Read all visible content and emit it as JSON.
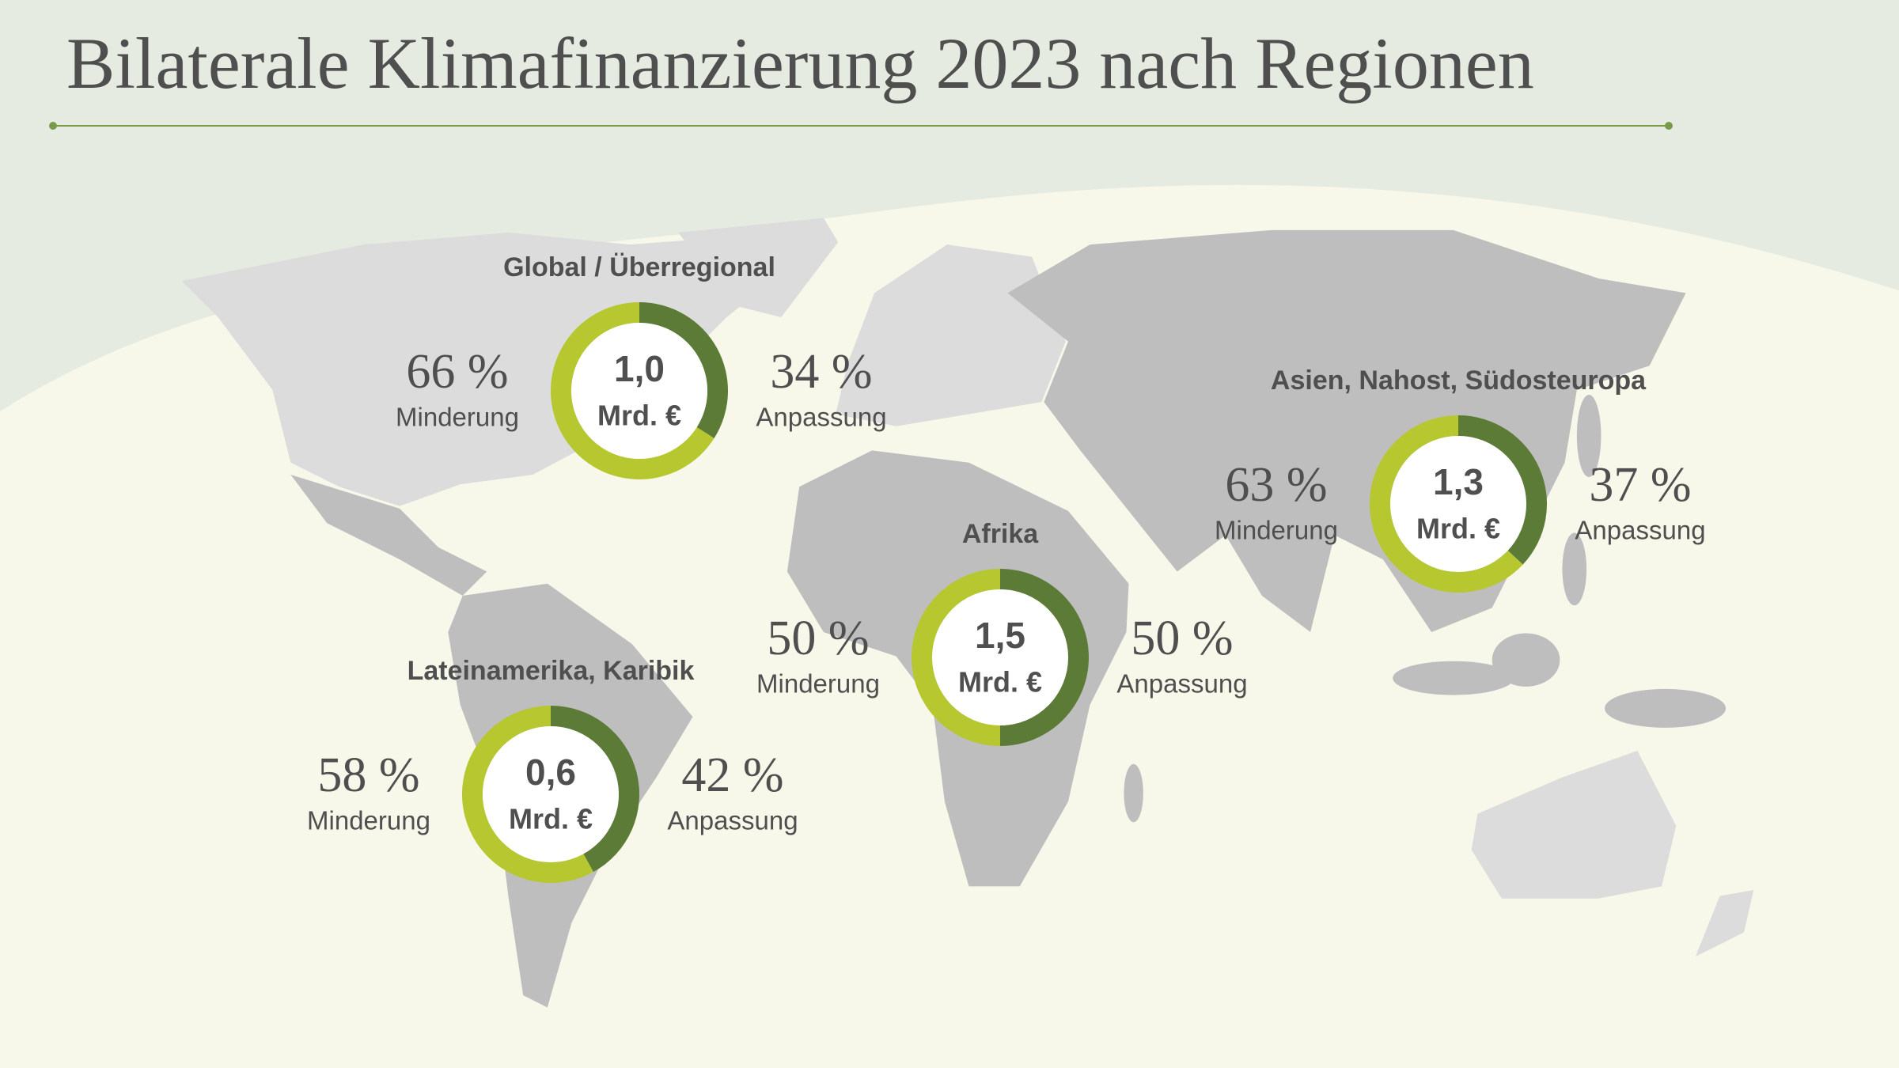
{
  "title": "Bilaterale Klimafinanzierung 2023 nach Regionen",
  "chart_data": [
    {
      "type": "pie",
      "donut": true,
      "title": "Global / Überregional",
      "center_label": "1,0",
      "center_unit": "Mrd. €",
      "categories": [
        "Minderung",
        "Anpassung"
      ],
      "values": [
        66,
        34
      ],
      "value_labels": [
        "66 %",
        "34 %"
      ],
      "colors": [
        "#b6c72f",
        "#5b7b37"
      ]
    },
    {
      "type": "pie",
      "donut": true,
      "title": "Asien, Nahost, Südosteuropa",
      "center_label": "1,3",
      "center_unit": "Mrd. €",
      "categories": [
        "Minderung",
        "Anpassung"
      ],
      "values": [
        63,
        37
      ],
      "value_labels": [
        "63 %",
        "37 %"
      ],
      "colors": [
        "#b6c72f",
        "#5b7b37"
      ]
    },
    {
      "type": "pie",
      "donut": true,
      "title": "Afrika",
      "center_label": "1,5",
      "center_unit": "Mrd. €",
      "categories": [
        "Minderung",
        "Anpassung"
      ],
      "values": [
        50,
        50
      ],
      "value_labels": [
        "50 %",
        "50 %"
      ],
      "colors": [
        "#b6c72f",
        "#5b7b37"
      ]
    },
    {
      "type": "pie",
      "donut": true,
      "title": "Lateinamerika, Karibik",
      "center_label": "0,6",
      "center_unit": "Mrd. €",
      "categories": [
        "Minderung",
        "Anpassung"
      ],
      "values": [
        58,
        42
      ],
      "value_labels": [
        "58 %",
        "42 %"
      ],
      "colors": [
        "#b6c72f",
        "#5b7b37"
      ]
    }
  ]
}
